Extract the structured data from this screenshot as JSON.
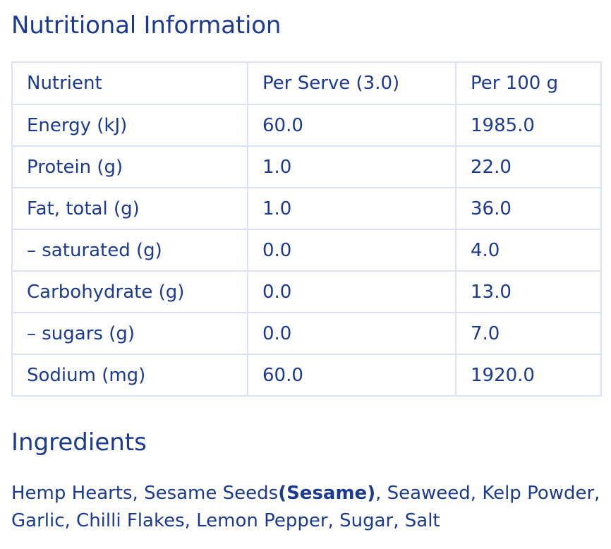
{
  "header": {
    "title": "Nutritional Information"
  },
  "table": {
    "columns": [
      "Nutrient",
      "Per Serve (3.0)",
      "Per 100 g"
    ],
    "rows": [
      [
        "Energy (kJ)",
        "60.0",
        "1985.0"
      ],
      [
        "Protein (g)",
        "1.0",
        "22.0"
      ],
      [
        "Fat, total (g)",
        "1.0",
        "36.0"
      ],
      [
        "– saturated (g)",
        "0.0",
        "4.0"
      ],
      [
        "Carbohydrate (g)",
        "0.0",
        "13.0"
      ],
      [
        "– sugars (g)",
        "0.0",
        "7.0"
      ],
      [
        "Sodium (mg)",
        "60.0",
        "1920.0"
      ]
    ]
  },
  "ingredients": {
    "title": "Ingredients",
    "text_part1": "Hemp Hearts, Sesame Seeds",
    "allergen": "(Sesame)",
    "text_part2": ", Seaweed, Kelp Powder, Garlic, Chilli Flakes, Lemon Pepper, Sugar, Salt"
  },
  "colors": {
    "text": "#1b3a93",
    "border": "#dbe2f5",
    "background": "#ffffff"
  }
}
